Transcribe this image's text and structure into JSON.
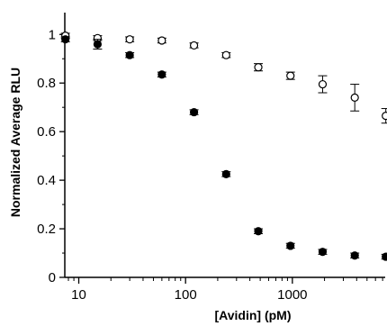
{
  "chart_data": {
    "type": "scatter",
    "title": "",
    "xlabel": "[Avidin] (pM)",
    "ylabel": "Normalized Average RLU",
    "x_scale": "log",
    "xlim": [
      7.4,
      7400
    ],
    "ylim": [
      0,
      1.09
    ],
    "x_tick_labels": [
      "10",
      "100",
      "1000"
    ],
    "y_tick_labels": [
      "0",
      "0.2",
      "0.4",
      "0.6",
      "0.8",
      "1"
    ],
    "grid": false,
    "legend": "none",
    "series": [
      {
        "marker": "open-circle",
        "color": "#000000",
        "x": [
          7.5,
          15,
          30,
          60,
          120,
          240,
          480,
          960,
          1920,
          3840,
          7500
        ],
        "y": [
          0.995,
          0.985,
          0.98,
          0.975,
          0.955,
          0.915,
          0.865,
          0.83,
          0.795,
          0.74,
          0.665
        ],
        "error": [
          0.01,
          0.01,
          0.01,
          0.01,
          0.01,
          0.01,
          0.015,
          0.015,
          0.035,
          0.055,
          0.03
        ]
      },
      {
        "marker": "filled-circle",
        "color": "#000000",
        "x": [
          7.5,
          15,
          30,
          60,
          120,
          240,
          480,
          960,
          1920,
          3840,
          7500
        ],
        "y": [
          0.98,
          0.96,
          0.915,
          0.835,
          0.68,
          0.425,
          0.19,
          0.13,
          0.105,
          0.09,
          0.085
        ],
        "error": [
          0.01,
          0.02,
          0.01,
          0.01,
          0.01,
          0.01,
          0.01,
          0.01,
          0.01,
          0.01,
          0.01
        ]
      }
    ]
  }
}
